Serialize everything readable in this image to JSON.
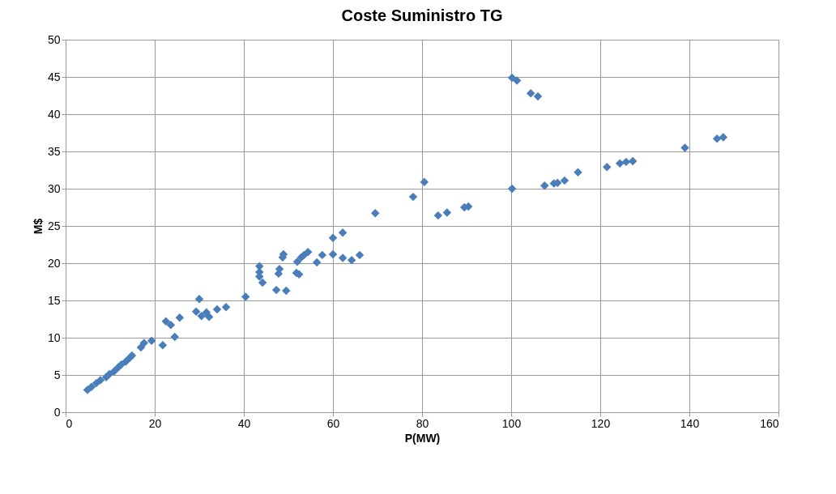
{
  "chart_data": {
    "type": "scatter",
    "title": "Coste Suministro TG",
    "xlabel": "P(MW)",
    "ylabel": "M$",
    "x": [
      4.9,
      5.8,
      6.9,
      7.8,
      9.1,
      9.8,
      10.9,
      11.8,
      12.5,
      13.5,
      14.4,
      14.9,
      16.9,
      17.6,
      19.3,
      21.8,
      22.5,
      23.6,
      24.5,
      25.6,
      30,
      29.3,
      30.5,
      31.6,
      32.2,
      34,
      36,
      40.4,
      43.5,
      43.5,
      43.5,
      44.2,
      47.3,
      47.8,
      48,
      48.7,
      48.9,
      49.5,
      51.8,
      52,
      52.4,
      52.9,
      53.5,
      54.4,
      56.4,
      57.6,
      60,
      60,
      62.2,
      62.2,
      64.2,
      66,
      69.5,
      78,
      80.5,
      83.6,
      85.6,
      89.5,
      90.4,
      100.2,
      100.2,
      101.3,
      104.4,
      106,
      107.5,
      109.6,
      110.4,
      112,
      115,
      121.5,
      124.4,
      125.8,
      127.3,
      139,
      146.2,
      147.6
    ],
    "values": [
      3.0,
      3.4,
      3.9,
      4.3,
      4.7,
      5.1,
      5.5,
      6.0,
      6.4,
      6.8,
      7.3,
      7.6,
      8.7,
      9.3,
      9.6,
      9.0,
      12.2,
      11.7,
      10.1,
      12.7,
      15.2,
      13.5,
      12.9,
      13.4,
      12.8,
      13.8,
      14.1,
      15.5,
      19.6,
      18.8,
      18.2,
      17.4,
      16.4,
      18.6,
      19.2,
      20.8,
      21.2,
      16.3,
      18.7,
      20.2,
      18.5,
      20.8,
      21.1,
      21.5,
      20.1,
      21.1,
      23.4,
      21.2,
      24.1,
      20.7,
      20.4,
      21.1,
      26.7,
      28.9,
      30.9,
      26.4,
      26.8,
      27.5,
      27.6,
      30,
      44.9,
      44.5,
      42.8,
      42.4,
      30.4,
      30.7,
      30.8,
      31.1,
      32.2,
      32.9,
      33.4,
      33.6,
      33.7,
      35.5,
      36.7,
      36.9
    ],
    "color": "#4a7ebb",
    "marker": "diamond",
    "grid": true,
    "xlim": [
      0,
      160
    ],
    "xticks": [
      0,
      20,
      40,
      60,
      80,
      100,
      120,
      140,
      160
    ],
    "ylim": [
      0,
      50
    ],
    "yticks": [
      0,
      5,
      10,
      15,
      20,
      25,
      30,
      35,
      40,
      45,
      50
    ]
  }
}
